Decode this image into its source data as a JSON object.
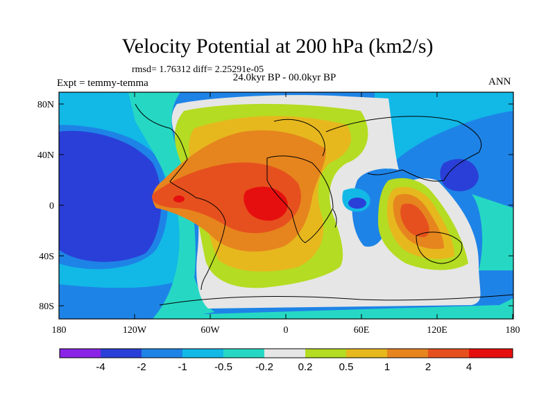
{
  "title": "Velocity Potential at 200 hPa (km2/s)",
  "stats": "rmsd= 1.76312 diff= 2.25291e-05",
  "experiment": "Expt = temmy-temma",
  "period": "24.0kyr BP - 00.0kyr BP",
  "season": "ANN",
  "axes": {
    "x_ticks": [
      "180",
      "120W",
      "60W",
      "0",
      "60E",
      "120E",
      "180"
    ],
    "y_ticks": [
      "80N",
      "40N",
      "0",
      "40S",
      "80S"
    ]
  },
  "colorbar": {
    "labels": [
      "-4",
      "-2",
      "-1",
      "-0.5",
      "-0.2",
      "0.2",
      "0.5",
      "1",
      "2",
      "4"
    ],
    "colors": [
      "#8a23e6",
      "#2a3fd8",
      "#1e83e6",
      "#12b8e6",
      "#26d8c4",
      "#e6e6e6",
      "#b4dc22",
      "#e6b81e",
      "#e6851e",
      "#e6501e",
      "#e60f0f"
    ]
  },
  "palette": {
    "ocean_lowest": "#3a38e0",
    "frame": "#000000"
  }
}
